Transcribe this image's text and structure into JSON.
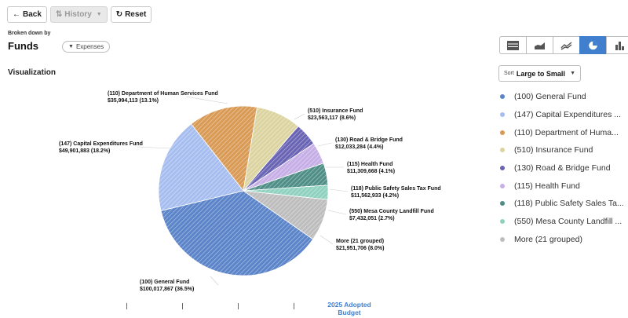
{
  "toolbar": {
    "back": "Back",
    "history": "History",
    "reset": "Reset"
  },
  "header": {
    "broken_down_by": "Broken down by",
    "title": "Funds",
    "filter": "Expenses"
  },
  "visualization": {
    "title": "Visualization",
    "axis_label": "2025 Adopted Budget"
  },
  "sort": {
    "prefix": "Sort",
    "value": "Large to Small"
  },
  "chart_types": [
    "table-icon",
    "area-chart-icon",
    "line-chart-icon",
    "pie-chart-icon",
    "bar-chart-icon"
  ],
  "colors": {
    "accent": "#3f7fce"
  },
  "legend": [
    {
      "label": "(100) General Fund",
      "color": "#5b84c9"
    },
    {
      "label": "(147) Capital Expenditures ...",
      "color": "#a6bdf0"
    },
    {
      "label": "(110) Department of Huma...",
      "color": "#d99a55"
    },
    {
      "label": "(510) Insurance Fund",
      "color": "#dcd4a0"
    },
    {
      "label": "(130) Road & Bridge Fund",
      "color": "#6a64b4"
    },
    {
      "label": "(115) Health Fund",
      "color": "#c6aee6"
    },
    {
      "label": "(118) Public Safety Sales Ta...",
      "color": "#4e8e86"
    },
    {
      "label": "(550) Mesa County Landfill ...",
      "color": "#8fd1bf"
    },
    {
      "label": "More (21 grouped)",
      "color": "#bdbdbd"
    }
  ],
  "chart_data": {
    "type": "pie",
    "series_name": "2025 Adopted Budget",
    "slices": [
      {
        "name": "(100) General Fund",
        "value": 100017867,
        "value_label": "$100,017,867 (36.5%)"
      },
      {
        "name": "(147) Capital Expenditures Fund",
        "value": 49901883,
        "value_label": "$49,901,883 (18.2%)"
      },
      {
        "name": "(110) Department of Human Services Fund",
        "value": 35994113,
        "value_label": "$35,994,113 (13.1%)"
      },
      {
        "name": "(510) Insurance Fund",
        "value": 23563117,
        "value_label": "$23,563,117 (8.6%)"
      },
      {
        "name": "(130) Road & Bridge Fund",
        "value": 12033284,
        "value_label": "$12,033,284 (4.4%)"
      },
      {
        "name": "(115) Health Fund",
        "value": 11309668,
        "value_label": "$11,309,668 (4.1%)"
      },
      {
        "name": "(118) Public Safety Sales Tax Fund",
        "value": 11562933,
        "value_label": "$11,562,933 (4.2%)"
      },
      {
        "name": "(550) Mesa County Landfill Fund",
        "value": 7432051,
        "value_label": "$7,432,051 (2.7%)"
      },
      {
        "name": "More (21 grouped)",
        "value": 21951706,
        "value_label": "$21,951,706 (8.0%)"
      }
    ]
  }
}
